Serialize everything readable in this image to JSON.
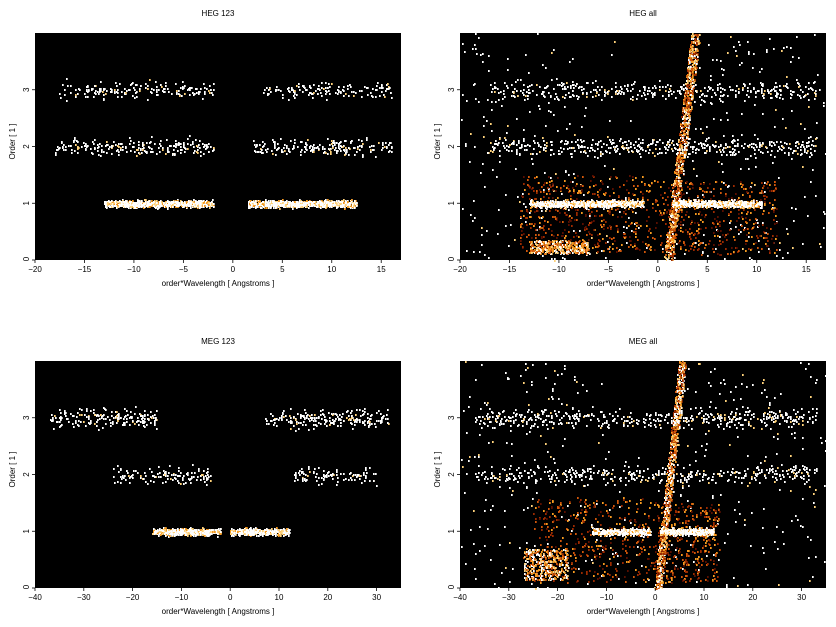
{
  "figure": {
    "background": "#ffffff",
    "plot_background": "#000000",
    "colormap": [
      "#5a0f00",
      "#9b2a00",
      "#d2570a",
      "#f59a20",
      "#ffd27a",
      "#ffffff"
    ]
  },
  "chart_data": [
    {
      "type": "heatmap",
      "title": "HEG 123",
      "xlabel": "order*Wavelength [ Angstroms ]",
      "ylabel": "Order [ 1 ]",
      "xlim": [
        -20,
        17
      ],
      "ylim": [
        0,
        4
      ],
      "xticks": [
        -20,
        -15,
        -10,
        -5,
        0,
        5,
        10,
        15
      ],
      "xtick_labels": [
        "−20",
        "−15",
        "−10",
        "−5",
        "0",
        "5",
        "10",
        "15"
      ],
      "yticks": [
        0,
        1,
        2,
        3
      ],
      "ytick_labels": [
        "0",
        "1",
        "2",
        "3"
      ],
      "grid": false,
      "bands": [
        {
          "x": [
            -18,
            -2
          ],
          "order": 3,
          "spread": 0.07,
          "density": 0.5
        },
        {
          "x": [
            3,
            16
          ],
          "order": 3,
          "spread": 0.07,
          "density": 0.5
        },
        {
          "x": [
            -18,
            -2
          ],
          "order": 2,
          "spread": 0.07,
          "density": 0.65
        },
        {
          "x": [
            2,
            16
          ],
          "order": 2,
          "spread": 0.07,
          "density": 0.65
        },
        {
          "x": [
            -13,
            -2
          ],
          "order": 1,
          "spread": 0.03,
          "density": 3.5
        },
        {
          "x": [
            1.5,
            12.5
          ],
          "order": 1,
          "spread": 0.03,
          "density": 3.5
        }
      ],
      "cones": [],
      "arms": [],
      "background_density": 0.0,
      "seed": 11
    },
    {
      "type": "heatmap",
      "title": "HEG all",
      "xlabel": "order*Wavelength [ Angstroms ]",
      "ylabel": "Order [ 1 ]",
      "xlim": [
        -20,
        17
      ],
      "ylim": [
        0,
        4
      ],
      "xticks": [
        -20,
        -15,
        -10,
        -5,
        0,
        5,
        10,
        15
      ],
      "xtick_labels": [
        "−20",
        "−15",
        "−10",
        "−5",
        "0",
        "5",
        "10",
        "15"
      ],
      "yticks": [
        0,
        1,
        2,
        3
      ],
      "ytick_labels": [
        "0",
        "1",
        "2",
        "3"
      ],
      "grid": false,
      "bands": [
        {
          "x": [
            -17,
            16
          ],
          "order": 3,
          "spread": 0.08,
          "density": 0.5
        },
        {
          "x": [
            -17,
            16
          ],
          "order": 2,
          "spread": 0.08,
          "density": 0.6
        },
        {
          "x": [
            -13,
            -1.5
          ],
          "order": 1,
          "spread": 0.03,
          "density": 3.0
        },
        {
          "x": [
            1.5,
            10.5
          ],
          "order": 1,
          "spread": 0.03,
          "density": 3.0
        }
      ],
      "cones": [
        {
          "x": [
            -14,
            0
          ],
          "y": [
            0.15,
            1.5
          ],
          "density": 1.6
        },
        {
          "x": [
            0,
            12
          ],
          "y": [
            0.1,
            1.4
          ],
          "density": 1.3
        }
      ],
      "arms": [
        {
          "x0": 1.0,
          "x1": 3.8,
          "y0": 0.0,
          "y1": 4.0,
          "width": 0.9,
          "density": 3.0
        }
      ],
      "clumps": [
        {
          "x": [
            -13,
            -7
          ],
          "y": [
            0.12,
            0.35
          ],
          "density": 2.5
        }
      ],
      "background_density": 0.55,
      "wedge": [
        {
          "x": -10,
          "y": 4
        },
        {
          "x": 0,
          "y": 0
        },
        {
          "x": 3.5,
          "y": 4
        }
      ],
      "seed": 23
    },
    {
      "type": "heatmap",
      "title": "MEG 123",
      "xlabel": "order*Wavelength [ Angstroms ]",
      "ylabel": "Order [ 1 ]",
      "xlim": [
        -40,
        35
      ],
      "ylim": [
        0,
        4
      ],
      "xticks": [
        -40,
        -30,
        -20,
        -10,
        0,
        10,
        20,
        30
      ],
      "xtick_labels": [
        "−40",
        "−30",
        "−20",
        "−10",
        "0",
        "10",
        "20",
        "30"
      ],
      "yticks": [
        0,
        1,
        2,
        3
      ],
      "ytick_labels": [
        "0",
        "1",
        "2",
        "3"
      ],
      "grid": false,
      "bands": [
        {
          "x": [
            -37,
            -15
          ],
          "order": 3,
          "spread": 0.08,
          "density": 0.8
        },
        {
          "x": [
            7,
            33
          ],
          "order": 3,
          "spread": 0.08,
          "density": 0.8
        },
        {
          "x": [
            -25,
            -4
          ],
          "order": 2,
          "spread": 0.07,
          "density": 0.55
        },
        {
          "x": [
            13,
            30
          ],
          "order": 2,
          "spread": 0.07,
          "density": 0.55
        },
        {
          "x": [
            -16,
            -2
          ],
          "order": 1,
          "spread": 0.03,
          "density": 3.2
        },
        {
          "x": [
            0,
            12
          ],
          "order": 1,
          "spread": 0.03,
          "density": 3.2
        }
      ],
      "cones": [],
      "arms": [],
      "background_density": 0.0,
      "seed": 37
    },
    {
      "type": "heatmap",
      "title": "MEG all",
      "xlabel": "order*Wavelength [ Angstroms ]",
      "ylabel": "Order [ 1 ]",
      "xlim": [
        -40,
        35
      ],
      "ylim": [
        0,
        4
      ],
      "xticks": [
        -40,
        -30,
        -20,
        -10,
        0,
        10,
        20,
        30
      ],
      "xtick_labels": [
        "−40",
        "−30",
        "−20",
        "−10",
        "0",
        "10",
        "20",
        "30"
      ],
      "yticks": [
        0,
        1,
        2,
        3
      ],
      "ytick_labels": [
        "0",
        "1",
        "2",
        "3"
      ],
      "grid": false,
      "bands": [
        {
          "x": [
            -37,
            33
          ],
          "order": 3,
          "spread": 0.08,
          "density": 0.6
        },
        {
          "x": [
            -37,
            33
          ],
          "order": 2,
          "spread": 0.08,
          "density": 0.5
        },
        {
          "x": [
            -13,
            -1
          ],
          "order": 1,
          "spread": 0.03,
          "density": 3.0
        },
        {
          "x": [
            1,
            12
          ],
          "order": 1,
          "spread": 0.03,
          "density": 3.0
        }
      ],
      "cones": [
        {
          "x": [
            -25,
            0
          ],
          "y": [
            0.1,
            1.6
          ],
          "density": 1.2
        },
        {
          "x": [
            0,
            13
          ],
          "y": [
            0.1,
            1.5
          ],
          "density": 1.1
        }
      ],
      "arms": [
        {
          "x0": 0.5,
          "x1": 5.5,
          "y0": 0.0,
          "y1": 4.0,
          "width": 1.5,
          "density": 3.0
        }
      ],
      "clumps": [
        {
          "x": [
            -27,
            -18
          ],
          "y": [
            0.15,
            0.7
          ],
          "density": 2.4
        }
      ],
      "background_density": 0.5,
      "wedge": [
        {
          "x": -16,
          "y": 4
        },
        {
          "x": 0,
          "y": 0
        },
        {
          "x": 4.5,
          "y": 4
        }
      ],
      "seed": 51
    }
  ]
}
